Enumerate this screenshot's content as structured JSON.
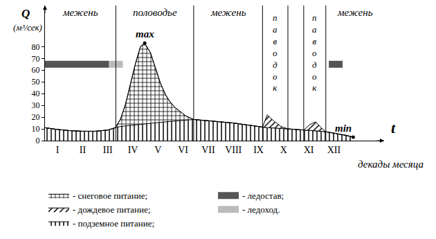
{
  "chart_data": {
    "type": "area",
    "stacked": true,
    "y_label": "Q",
    "y_unit": "(м³/сек)",
    "x_label": "t",
    "x_sublabel": "декады месяца",
    "x": [
      0,
      0.5,
      1,
      1.5,
      2,
      2.5,
      2.8,
      3.0,
      3.2,
      3.4,
      3.6,
      3.8,
      3.97,
      4.2,
      4.4,
      4.6,
      4.8,
      5.0,
      5.2,
      5.4,
      5.6,
      5.92,
      6.5,
      7,
      7.5,
      8,
      8.5,
      8.66,
      8.85,
      9.1,
      9.4,
      9.67,
      10,
      10.3,
      10.55,
      10.77,
      11,
      11.18,
      11.5,
      12,
      12.27
    ],
    "series": [
      {
        "name": "- подземное питание;",
        "color": "#000000",
        "marker": "vertical",
        "values": [
          11,
          9.5,
          8.5,
          8,
          8,
          9,
          11,
          12,
          12.5,
          13,
          13.5,
          14,
          14.3,
          14.8,
          15.2,
          15.6,
          16,
          16.4,
          16.8,
          17.2,
          17.6,
          18,
          17,
          16,
          15,
          13.5,
          12,
          11.5,
          11,
          10.8,
          10.5,
          10,
          9.5,
          9,
          8.8,
          8.5,
          8,
          7.5,
          6.5,
          4.5,
          3
        ]
      },
      {
        "name": "- снеговое питание;",
        "color": "#000000",
        "marker": "crosshatch",
        "values": [
          0,
          0,
          0,
          0,
          0,
          0,
          0,
          6,
          18,
          35,
          52,
          66,
          68.7,
          60,
          47,
          33,
          23,
          16,
          11,
          7,
          3.5,
          0,
          0,
          0,
          0,
          0,
          0,
          0,
          0,
          0,
          0,
          0,
          0,
          0,
          0,
          0,
          0,
          0,
          0,
          0,
          0
        ]
      },
      {
        "name": "- дождевое питание;",
        "color": "#000000",
        "marker": "diagonal",
        "values": [
          0,
          0,
          0,
          0,
          0,
          0,
          0,
          0,
          0,
          0,
          0,
          0,
          0,
          0,
          0,
          0,
          0,
          0,
          0,
          0,
          0,
          0,
          0,
          0,
          0,
          0,
          0,
          0,
          11,
          6,
          1.5,
          0,
          0,
          0,
          5,
          7.5,
          3,
          0,
          0,
          0,
          0
        ]
      }
    ],
    "periods": [
      {
        "name": "- ледостав;",
        "color": "#555555",
        "start": 0,
        "end": 2.55,
        "level": 65
      },
      {
        "name": "- ледоход.",
        "color": "#bbbbbb",
        "start": 2.55,
        "end": 3.1,
        "level": 65
      },
      {
        "name": "- ледостав;",
        "color": "#555555",
        "start": 11.3,
        "end": 11.85,
        "level": 65
      }
    ],
    "phases": [
      {
        "label": "межень",
        "start": 0,
        "end": 2.82
      },
      {
        "label": "половодье",
        "start": 2.82,
        "end": 5.92
      },
      {
        "label": "межень",
        "start": 5.92,
        "end": 8.66
      },
      {
        "label": "паводок",
        "start": 8.66,
        "end": 9.67
      },
      {
        "label": "паводок",
        "start": 10.3,
        "end": 11.18
      },
      {
        "label": "межень",
        "start": 11.18,
        "end": 13.5
      }
    ],
    "annotations": [
      {
        "text": "max",
        "x": 3.97,
        "y": 83
      },
      {
        "text": "min",
        "x": 12.27,
        "y": 3
      }
    ],
    "xlim": [
      0,
      13.5
    ],
    "xticks": [
      {
        "value": 0.5,
        "label": "I"
      },
      {
        "value": 1.5,
        "label": "II"
      },
      {
        "value": 2.5,
        "label": "III"
      },
      {
        "value": 3.5,
        "label": "IV"
      },
      {
        "value": 4.5,
        "label": "V"
      },
      {
        "value": 5.5,
        "label": "VI"
      },
      {
        "value": 6.5,
        "label": "VII"
      },
      {
        "value": 7.5,
        "label": "VIII"
      },
      {
        "value": 8.5,
        "label": "IX"
      },
      {
        "value": 9.5,
        "label": "X"
      },
      {
        "value": 10.5,
        "label": "XI"
      },
      {
        "value": 11.5,
        "label": "XII"
      }
    ],
    "ylim": [
      0,
      115
    ],
    "yticks": [
      0,
      10,
      20,
      30,
      40,
      50,
      60,
      70,
      80
    ],
    "grid": false,
    "legend": "bottom"
  }
}
